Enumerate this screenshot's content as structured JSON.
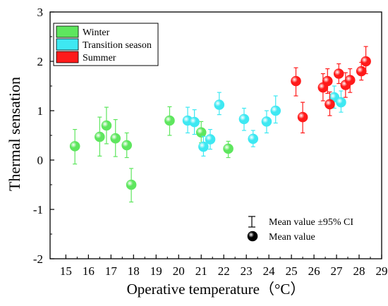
{
  "chart_data": {
    "type": "scatter",
    "xlabel": "Operative temperature（°C）",
    "ylabel": "Thermal sensation",
    "xlim": [
      14.3,
      29
    ],
    "ylim": [
      -2,
      3
    ],
    "xticks": [
      15,
      16,
      17,
      18,
      19,
      20,
      21,
      22,
      23,
      24,
      25,
      26,
      27,
      28,
      29
    ],
    "yticks": [
      -2,
      -1,
      0,
      1,
      2,
      3
    ],
    "legend_position": "top-left",
    "series": [
      {
        "name": "Winter",
        "color": "#5ee65e",
        "points": [
          {
            "x": 15.4,
            "y": 0.28,
            "lo": -0.08,
            "hi": 0.62
          },
          {
            "x": 16.5,
            "y": 0.47,
            "lo": 0.08,
            "hi": 0.87
          },
          {
            "x": 16.8,
            "y": 0.7,
            "lo": 0.33,
            "hi": 1.07
          },
          {
            "x": 17.2,
            "y": 0.44,
            "lo": 0.07,
            "hi": 0.82
          },
          {
            "x": 17.7,
            "y": 0.3,
            "lo": 0.05,
            "hi": 0.55
          },
          {
            "x": 17.9,
            "y": -0.5,
            "lo": -0.85,
            "hi": -0.17
          },
          {
            "x": 19.6,
            "y": 0.8,
            "lo": 0.5,
            "hi": 1.08
          },
          {
            "x": 21.0,
            "y": 0.56,
            "lo": 0.35,
            "hi": 0.78
          },
          {
            "x": 22.2,
            "y": 0.23,
            "lo": 0.05,
            "hi": 0.38
          }
        ]
      },
      {
        "name": "Transition season",
        "color": "#3ee8f2",
        "points": [
          {
            "x": 20.4,
            "y": 0.8,
            "lo": 0.55,
            "hi": 1.07
          },
          {
            "x": 20.7,
            "y": 0.77,
            "lo": 0.52,
            "hi": 1.02
          },
          {
            "x": 21.1,
            "y": 0.27,
            "lo": 0.08,
            "hi": 0.48
          },
          {
            "x": 21.4,
            "y": 0.42,
            "lo": 0.22,
            "hi": 0.62
          },
          {
            "x": 21.8,
            "y": 1.12,
            "lo": 0.92,
            "hi": 1.37
          },
          {
            "x": 22.9,
            "y": 0.83,
            "lo": 0.6,
            "hi": 1.05
          },
          {
            "x": 23.3,
            "y": 0.43,
            "lo": 0.27,
            "hi": 0.6
          },
          {
            "x": 23.9,
            "y": 0.78,
            "lo": 0.55,
            "hi": 1.0
          },
          {
            "x": 24.3,
            "y": 1.0,
            "lo": 0.75,
            "hi": 1.3
          },
          {
            "x": 26.9,
            "y": 1.27,
            "lo": 1.05,
            "hi": 1.5
          },
          {
            "x": 27.2,
            "y": 1.17,
            "lo": 0.97,
            "hi": 1.4
          }
        ]
      },
      {
        "name": "Summer",
        "color": "#ff1a1a",
        "points": [
          {
            "x": 25.2,
            "y": 1.6,
            "lo": 1.3,
            "hi": 1.87
          },
          {
            "x": 25.5,
            "y": 0.87,
            "lo": 0.55,
            "hi": 1.17
          },
          {
            "x": 26.4,
            "y": 1.47,
            "lo": 1.2,
            "hi": 1.75
          },
          {
            "x": 26.6,
            "y": 1.6,
            "lo": 1.35,
            "hi": 1.85
          },
          {
            "x": 26.7,
            "y": 1.13,
            "lo": 0.9,
            "hi": 1.38
          },
          {
            "x": 27.1,
            "y": 1.75,
            "lo": 1.55,
            "hi": 1.95
          },
          {
            "x": 27.4,
            "y": 1.52,
            "lo": 1.27,
            "hi": 1.77
          },
          {
            "x": 27.6,
            "y": 1.62,
            "lo": 1.37,
            "hi": 1.85
          },
          {
            "x": 28.1,
            "y": 1.8,
            "lo": 1.62,
            "hi": 1.98
          },
          {
            "x": 28.3,
            "y": 2.0,
            "lo": 1.75,
            "hi": 2.3
          }
        ]
      }
    ],
    "annotations": {
      "ci_label": "Mean value ±95% CI",
      "mean_label": "Mean value"
    }
  }
}
